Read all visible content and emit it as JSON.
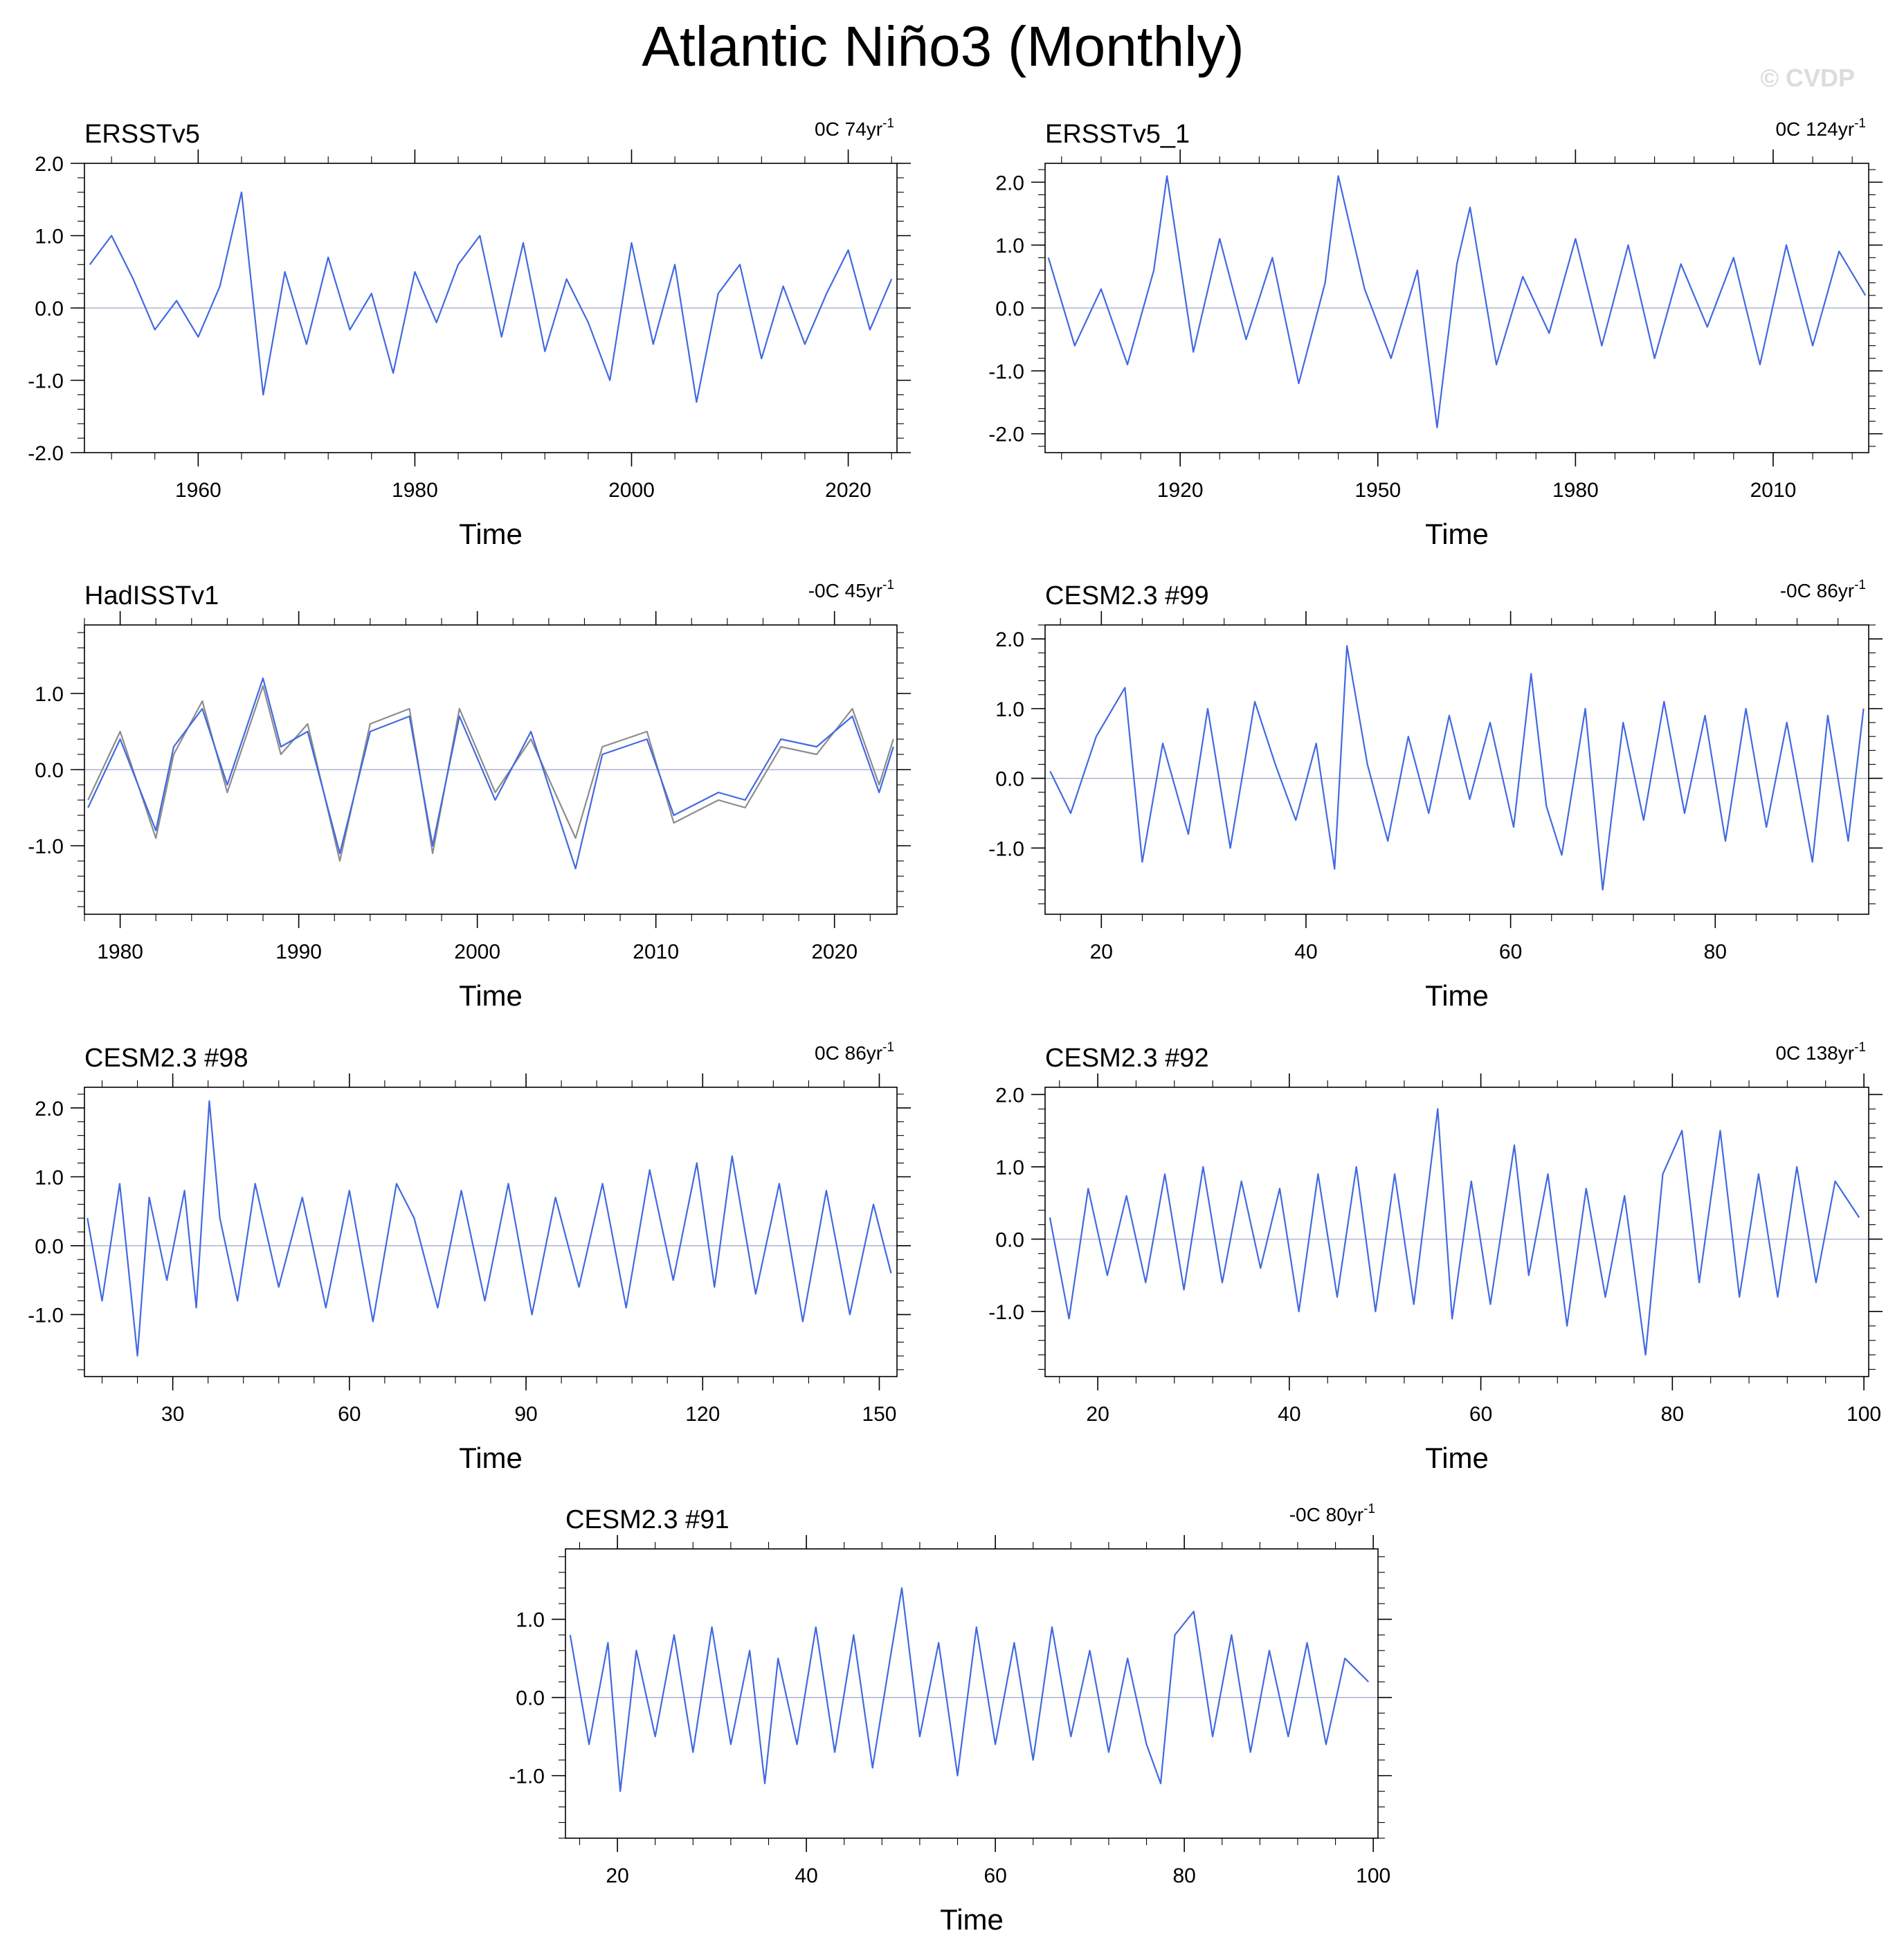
{
  "title": "Atlantic Niño3 (Monthly)",
  "watermark": "© CVDP",
  "colors": {
    "series": "#4169e1",
    "reference": "#8c8c8c",
    "zero_line": "#9aa6c8"
  },
  "chart_data": [
    {
      "type": "line",
      "title": "ERSSTv5",
      "trend": "0C 74yr",
      "trend_exp": "-1",
      "xlabel": "Time",
      "ylabel": "",
      "xlim": [
        1949.5,
        2024.5
      ],
      "ylim": [
        -2.0,
        2.0
      ],
      "xticks": [
        1960,
        1980,
        2000,
        2020
      ],
      "xticklabels": [
        "1960",
        "1980",
        "2000",
        "2020"
      ],
      "yticks": [
        2,
        1,
        0,
        -1,
        -2
      ],
      "yticklabels": [
        "2.0",
        "1.0",
        "0.0",
        "-1.0",
        "-2.0"
      ],
      "grid": false,
      "series": [
        {
          "x": [
            1950,
            1952,
            1954,
            1956,
            1958,
            1960,
            1962,
            1964,
            1966,
            1968,
            1970,
            1972,
            1974,
            1976,
            1978,
            1980,
            1982,
            1984,
            1986,
            1988,
            1990,
            1992,
            1994,
            1996,
            1998,
            2000,
            2002,
            2004,
            2006,
            2008,
            2010,
            2012,
            2014,
            2016,
            2018,
            2020,
            2022,
            2024
          ],
          "y": [
            0.6,
            1.0,
            0.4,
            -0.3,
            0.1,
            -0.4,
            0.3,
            1.6,
            -1.2,
            0.5,
            -0.5,
            0.7,
            -0.3,
            0.2,
            -0.9,
            0.5,
            -0.2,
            0.6,
            1.0,
            -0.4,
            0.9,
            -0.6,
            0.4,
            -0.2,
            -1.0,
            0.9,
            -0.5,
            0.6,
            -1.3,
            0.2,
            0.6,
            -0.7,
            0.3,
            -0.5,
            0.2,
            0.8,
            -0.3,
            0.4
          ]
        }
      ]
    },
    {
      "type": "line",
      "title": "ERSSTv5_1",
      "trend": "0C 124yr",
      "trend_exp": "-1",
      "xlabel": "Time",
      "ylabel": "",
      "xlim": [
        1899.5,
        2024.5
      ],
      "ylim": [
        -2.3,
        2.3
      ],
      "xticks": [
        1920,
        1950,
        1980,
        2010
      ],
      "xticklabels": [
        "1920",
        "1950",
        "1980",
        "2010"
      ],
      "yticks": [
        2,
        1,
        0,
        -1,
        -2
      ],
      "yticklabels": [
        "2.0",
        "1.0",
        "0.0",
        "-1.0",
        "-2.0"
      ],
      "grid": false,
      "series": [
        {
          "x": [
            1900,
            1904,
            1908,
            1912,
            1916,
            1918,
            1922,
            1926,
            1930,
            1934,
            1938,
            1942,
            1944,
            1948,
            1952,
            1956,
            1959,
            1962,
            1964,
            1968,
            1972,
            1976,
            1980,
            1984,
            1988,
            1992,
            1996,
            2000,
            2004,
            2008,
            2012,
            2016,
            2020,
            2024
          ],
          "y": [
            0.8,
            -0.6,
            0.3,
            -0.9,
            0.6,
            2.1,
            -0.7,
            1.1,
            -0.5,
            0.8,
            -1.2,
            0.4,
            2.1,
            0.3,
            -0.8,
            0.6,
            -1.9,
            0.7,
            1.6,
            -0.9,
            0.5,
            -0.4,
            1.1,
            -0.6,
            1.0,
            -0.8,
            0.7,
            -0.3,
            0.8,
            -0.9,
            1.0,
            -0.6,
            0.9,
            0.2
          ]
        }
      ]
    },
    {
      "type": "line",
      "title": "HadISSTv1",
      "trend": "-0C 45yr",
      "trend_exp": "-1",
      "xlabel": "Time",
      "ylabel": "",
      "xlim": [
        1978.0,
        2023.5
      ],
      "ylim": [
        -1.9,
        1.9
      ],
      "xticks": [
        1980,
        1990,
        2000,
        2010,
        2020
      ],
      "xticklabels": [
        "1980",
        "1990",
        "2000",
        "2010",
        "2020"
      ],
      "yticks": [
        1,
        0,
        -1
      ],
      "yticklabels": [
        "1.0",
        "0.0",
        "-1.0"
      ],
      "grid": false,
      "series": [
        {
          "x": [
            1978.2,
            1980,
            1982,
            1983,
            1984.6,
            1986,
            1988,
            1989,
            1990.5,
            1992.3,
            1994,
            1996.2,
            1997.5,
            1999,
            2001,
            2003,
            2005.5,
            2007,
            2009.5,
            2011,
            2013.5,
            2015,
            2017,
            2019,
            2021,
            2022.5,
            2023.3
          ],
          "y": [
            -0.4,
            0.5,
            -0.9,
            0.2,
            0.9,
            -0.3,
            1.1,
            0.2,
            0.6,
            -1.2,
            0.6,
            0.8,
            -1.1,
            0.8,
            -0.3,
            0.4,
            -0.9,
            0.3,
            0.5,
            -0.7,
            -0.4,
            -0.5,
            0.3,
            0.2,
            0.8,
            -0.2,
            0.4
          ]
        },
        {
          "x": [
            1978.2,
            1980,
            1982,
            1983,
            1984.6,
            1986,
            1988,
            1989,
            1990.5,
            1992.3,
            1994,
            1996.2,
            1997.5,
            1999,
            2001,
            2003,
            2005.5,
            2007,
            2009.5,
            2011,
            2013.5,
            2015,
            2017,
            2019,
            2021,
            2022.5,
            2023.3
          ],
          "y": [
            -0.5,
            0.4,
            -0.8,
            0.3,
            0.8,
            -0.2,
            1.2,
            0.3,
            0.5,
            -1.1,
            0.5,
            0.7,
            -1.0,
            0.7,
            -0.4,
            0.5,
            -1.3,
            0.2,
            0.4,
            -0.6,
            -0.3,
            -0.4,
            0.4,
            0.3,
            0.7,
            -0.3,
            0.3
          ]
        }
      ]
    },
    {
      "type": "line",
      "title": "CESM2.3 #99",
      "trend": "-0C 86yr",
      "trend_exp": "-1",
      "xlabel": "Time",
      "ylabel": "",
      "xlim": [
        14.5,
        95.0
      ],
      "ylim": [
        -1.95,
        2.2
      ],
      "xticks": [
        20,
        40,
        60,
        80
      ],
      "xticklabels": [
        "20",
        "40",
        "60",
        "80"
      ],
      "yticks": [
        2,
        1,
        0,
        -1
      ],
      "yticklabels": [
        "2.0",
        "1.0",
        "0.0",
        "-1.0"
      ],
      "grid": false,
      "series": [
        {
          "x": [
            15,
            17,
            19.5,
            22.3,
            24,
            26,
            28.5,
            30.4,
            32.6,
            35,
            37,
            39,
            41,
            42.8,
            44,
            46,
            48,
            50,
            52,
            54,
            56,
            58,
            60.3,
            62,
            63.5,
            65,
            67.3,
            69,
            71,
            73,
            75,
            77,
            79,
            81,
            83,
            85,
            87,
            89.5,
            91,
            93,
            94.5
          ],
          "y": [
            0.1,
            -0.5,
            0.6,
            1.3,
            -1.2,
            0.5,
            -0.8,
            1.0,
            -1.0,
            1.1,
            0.2,
            -0.6,
            0.5,
            -1.3,
            1.9,
            0.2,
            -0.9,
            0.6,
            -0.5,
            0.9,
            -0.3,
            0.8,
            -0.7,
            1.5,
            -0.4,
            -1.1,
            1.0,
            -1.6,
            0.8,
            -0.6,
            1.1,
            -0.5,
            0.9,
            -0.9,
            1.0,
            -0.7,
            0.8,
            -1.2,
            0.9,
            -0.9,
            1.0
          ]
        }
      ]
    },
    {
      "type": "line",
      "title": "CESM2.3 #98",
      "trend": "0C 86yr",
      "trend_exp": "-1",
      "xlabel": "Time",
      "ylabel": "",
      "xlim": [
        15.0,
        153.0
      ],
      "ylim": [
        -1.9,
        2.3
      ],
      "xticks": [
        30,
        60,
        90,
        120,
        150
      ],
      "xticklabels": [
        "30",
        "60",
        "90",
        "120",
        "150"
      ],
      "yticks": [
        2,
        1,
        0,
        -1
      ],
      "yticklabels": [
        "2.0",
        "1.0",
        "0.0",
        "-1.0"
      ],
      "grid": false,
      "series": [
        {
          "x": [
            15.5,
            18,
            21,
            24,
            26,
            29,
            32,
            34,
            36.2,
            38,
            41,
            44,
            48,
            52,
            56,
            60,
            64,
            68,
            71,
            75,
            79,
            83,
            87,
            91,
            95,
            99,
            103,
            107,
            111,
            115,
            119,
            122,
            125,
            129,
            133,
            137,
            141,
            145,
            149,
            152
          ],
          "y": [
            0.4,
            -0.8,
            0.9,
            -1.6,
            0.7,
            -0.5,
            0.8,
            -0.9,
            2.1,
            0.4,
            -0.8,
            0.9,
            -0.6,
            0.7,
            -0.9,
            0.8,
            -1.1,
            0.9,
            0.4,
            -0.9,
            0.8,
            -0.8,
            0.9,
            -1.0,
            0.7,
            -0.6,
            0.9,
            -0.9,
            1.1,
            -0.5,
            1.2,
            -0.6,
            1.3,
            -0.7,
            0.9,
            -1.1,
            0.8,
            -1.0,
            0.6,
            -0.4
          ]
        }
      ]
    },
    {
      "type": "line",
      "title": "CESM2.3 #92",
      "trend": "0C 138yr",
      "trend_exp": "-1",
      "xlabel": "Time",
      "ylabel": "",
      "xlim": [
        14.5,
        100.5
      ],
      "ylim": [
        -1.9,
        2.1
      ],
      "xticks": [
        20,
        40,
        60,
        80,
        100
      ],
      "xticklabels": [
        "20",
        "40",
        "60",
        "80",
        "100"
      ],
      "yticks": [
        2,
        1,
        0,
        -1
      ],
      "yticklabels": [
        "2.0",
        "1.0",
        "0.0",
        "-1.0"
      ],
      "grid": false,
      "series": [
        {
          "x": [
            15,
            17,
            19,
            21,
            23,
            25,
            27,
            29,
            31,
            33,
            35,
            37,
            39,
            41,
            43,
            45,
            47,
            49,
            51,
            53,
            55.5,
            57,
            59,
            61,
            63.5,
            65,
            67,
            69,
            71,
            73,
            75,
            77.2,
            79,
            81,
            82.8,
            85,
            87,
            89,
            91,
            93,
            95,
            97,
            99.5
          ],
          "y": [
            0.3,
            -1.1,
            0.7,
            -0.5,
            0.6,
            -0.6,
            0.9,
            -0.7,
            1.0,
            -0.6,
            0.8,
            -0.4,
            0.7,
            -1.0,
            0.9,
            -0.8,
            1.0,
            -1.0,
            0.9,
            -0.9,
            1.8,
            -1.1,
            0.8,
            -0.9,
            1.3,
            -0.5,
            0.9,
            -1.2,
            0.7,
            -0.8,
            0.6,
            -1.6,
            0.9,
            1.5,
            -0.6,
            1.5,
            -0.8,
            0.9,
            -0.8,
            1.0,
            -0.6,
            0.8,
            0.3
          ]
        }
      ]
    },
    {
      "type": "line",
      "title": "CESM2.3 #91",
      "trend": "-0C 80yr",
      "trend_exp": "-1",
      "xlabel": "Time",
      "ylabel": "",
      "xlim": [
        14.5,
        100.5
      ],
      "ylim": [
        -1.8,
        1.9
      ],
      "xticks": [
        20,
        40,
        60,
        80,
        100
      ],
      "xticklabels": [
        "20",
        "40",
        "60",
        "80",
        "100"
      ],
      "yticks": [
        1,
        0,
        -1
      ],
      "yticklabels": [
        "1.0",
        "0.0",
        "-1.0"
      ],
      "grid": false,
      "series": [
        {
          "x": [
            15,
            17,
            19,
            20.3,
            22,
            24,
            26,
            28,
            30,
            32,
            34,
            35.6,
            37,
            39,
            41,
            43,
            45,
            47,
            49,
            50.1,
            52,
            54,
            56,
            58,
            60,
            62,
            64,
            66,
            68,
            70,
            72,
            74,
            76,
            77.5,
            79,
            81,
            83,
            85,
            87,
            89,
            91,
            93,
            95,
            97,
            99.5
          ],
          "y": [
            0.8,
            -0.6,
            0.7,
            -1.2,
            0.6,
            -0.5,
            0.8,
            -0.7,
            0.9,
            -0.6,
            0.6,
            -1.1,
            0.5,
            -0.6,
            0.9,
            -0.7,
            0.8,
            -0.9,
            0.6,
            1.4,
            -0.5,
            0.7,
            -1.0,
            0.9,
            -0.6,
            0.7,
            -0.8,
            0.9,
            -0.5,
            0.6,
            -0.7,
            0.5,
            -0.6,
            -1.1,
            0.8,
            1.1,
            -0.5,
            0.8,
            -0.7,
            0.6,
            -0.5,
            0.7,
            -0.6,
            0.5,
            0.2
          ]
        }
      ]
    }
  ]
}
